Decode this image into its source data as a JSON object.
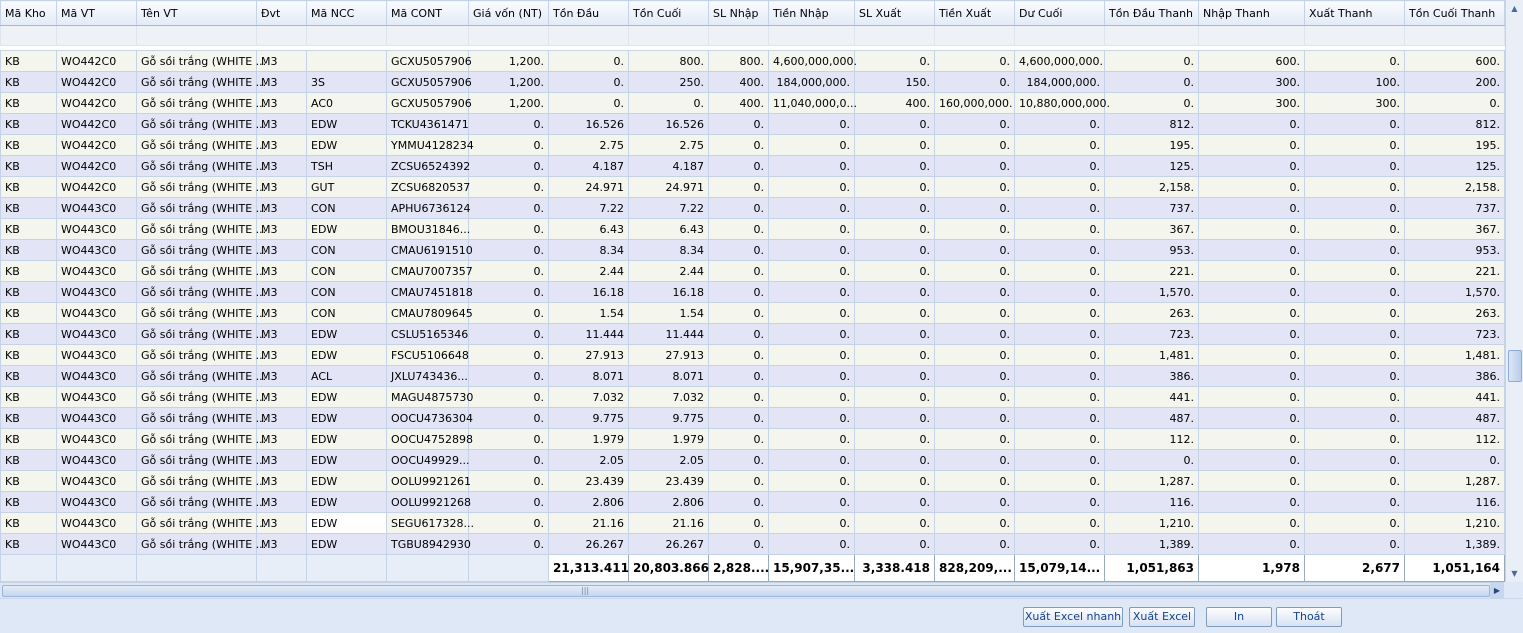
{
  "columns": [
    "Mã Kho",
    "Mã VT",
    "Tên VT",
    "Đvt",
    "Mã NCC",
    "Mã CONT",
    "Giá vốn (NT)",
    "Tồn Đầu",
    "Tồn Cuối",
    "SL Nhập",
    "Tiền Nhập",
    "SL Xuất",
    "Tiền Xuất",
    "Dư Cuối",
    "Tồn Đầu Thanh",
    "Nhập Thanh",
    "Xuất Thanh",
    "Tồn Cuối Thanh"
  ],
  "rows": [
    [
      "KB",
      "WO442C0",
      "Gỗ sồi trắng (WHITE ...",
      "M3",
      "",
      "GCXU5057906",
      "1,200.",
      "0.",
      "800.",
      "800.",
      "4,600,000,000.",
      "0.",
      "0.",
      "4,600,000,000.",
      "0.",
      "600.",
      "0.",
      "600."
    ],
    [
      "KB",
      "WO442C0",
      "Gỗ sồi trắng (WHITE ...",
      "M3",
      "3S",
      "GCXU5057906",
      "1,200.",
      "0.",
      "250.",
      "400.",
      "184,000,000.",
      "150.",
      "0.",
      "184,000,000.",
      "0.",
      "300.",
      "100.",
      "200."
    ],
    [
      "KB",
      "WO442C0",
      "Gỗ sồi trắng (WHITE ...",
      "M3",
      "AC0",
      "GCXU5057906",
      "1,200.",
      "0.",
      "0.",
      "400.",
      "11,040,000,0...",
      "400.",
      "160,000,000.",
      "10,880,000,000.",
      "0.",
      "300.",
      "300.",
      "0."
    ],
    [
      "KB",
      "WO442C0",
      "Gỗ sồi trắng (WHITE ...",
      "M3",
      "EDW",
      "TCKU4361471",
      "0.",
      "16.526",
      "16.526",
      "0.",
      "0.",
      "0.",
      "0.",
      "0.",
      "812.",
      "0.",
      "0.",
      "812."
    ],
    [
      "KB",
      "WO442C0",
      "Gỗ sồi trắng (WHITE ...",
      "M3",
      "EDW",
      "YMMU4128234",
      "0.",
      "2.75",
      "2.75",
      "0.",
      "0.",
      "0.",
      "0.",
      "0.",
      "195.",
      "0.",
      "0.",
      "195."
    ],
    [
      "KB",
      "WO442C0",
      "Gỗ sồi trắng (WHITE ...",
      "M3",
      "TSH",
      "ZCSU6524392",
      "0.",
      "4.187",
      "4.187",
      "0.",
      "0.",
      "0.",
      "0.",
      "0.",
      "125.",
      "0.",
      "0.",
      "125."
    ],
    [
      "KB",
      "WO442C0",
      "Gỗ sồi trắng (WHITE ...",
      "M3",
      "GUT",
      "ZCSU6820537",
      "0.",
      "24.971",
      "24.971",
      "0.",
      "0.",
      "0.",
      "0.",
      "0.",
      "2,158.",
      "0.",
      "0.",
      "2,158."
    ],
    [
      "KB",
      "WO443C0",
      "Gỗ sồi trắng (WHITE ...",
      "M3",
      "CON",
      "APHU6736124",
      "0.",
      "7.22",
      "7.22",
      "0.",
      "0.",
      "0.",
      "0.",
      "0.",
      "737.",
      "0.",
      "0.",
      "737."
    ],
    [
      "KB",
      "WO443C0",
      "Gỗ sồi trắng (WHITE ...",
      "M3",
      "EDW",
      "BMOU31846...",
      "0.",
      "6.43",
      "6.43",
      "0.",
      "0.",
      "0.",
      "0.",
      "0.",
      "367.",
      "0.",
      "0.",
      "367."
    ],
    [
      "KB",
      "WO443C0",
      "Gỗ sồi trắng (WHITE ...",
      "M3",
      "CON",
      "CMAU6191510",
      "0.",
      "8.34",
      "8.34",
      "0.",
      "0.",
      "0.",
      "0.",
      "0.",
      "953.",
      "0.",
      "0.",
      "953."
    ],
    [
      "KB",
      "WO443C0",
      "Gỗ sồi trắng (WHITE ...",
      "M3",
      "CON",
      "CMAU7007357",
      "0.",
      "2.44",
      "2.44",
      "0.",
      "0.",
      "0.",
      "0.",
      "0.",
      "221.",
      "0.",
      "0.",
      "221."
    ],
    [
      "KB",
      "WO443C0",
      "Gỗ sồi trắng (WHITE ...",
      "M3",
      "CON",
      "CMAU7451818",
      "0.",
      "16.18",
      "16.18",
      "0.",
      "0.",
      "0.",
      "0.",
      "0.",
      "1,570.",
      "0.",
      "0.",
      "1,570."
    ],
    [
      "KB",
      "WO443C0",
      "Gỗ sồi trắng (WHITE ...",
      "M3",
      "CON",
      "CMAU7809645",
      "0.",
      "1.54",
      "1.54",
      "0.",
      "0.",
      "0.",
      "0.",
      "0.",
      "263.",
      "0.",
      "0.",
      "263."
    ],
    [
      "KB",
      "WO443C0",
      "Gỗ sồi trắng (WHITE ...",
      "M3",
      "EDW",
      "CSLU5165346",
      "0.",
      "11.444",
      "11.444",
      "0.",
      "0.",
      "0.",
      "0.",
      "0.",
      "723.",
      "0.",
      "0.",
      "723."
    ],
    [
      "KB",
      "WO443C0",
      "Gỗ sồi trắng (WHITE ...",
      "M3",
      "EDW",
      "FSCU5106648",
      "0.",
      "27.913",
      "27.913",
      "0.",
      "0.",
      "0.",
      "0.",
      "0.",
      "1,481.",
      "0.",
      "0.",
      "1,481."
    ],
    [
      "KB",
      "WO443C0",
      "Gỗ sồi trắng (WHITE ...",
      "M3",
      "ACL",
      "JXLU743436...",
      "0.",
      "8.071",
      "8.071",
      "0.",
      "0.",
      "0.",
      "0.",
      "0.",
      "386.",
      "0.",
      "0.",
      "386."
    ],
    [
      "KB",
      "WO443C0",
      "Gỗ sồi trắng (WHITE ...",
      "M3",
      "EDW",
      "MAGU4875730",
      "0.",
      "7.032",
      "7.032",
      "0.",
      "0.",
      "0.",
      "0.",
      "0.",
      "441.",
      "0.",
      "0.",
      "441."
    ],
    [
      "KB",
      "WO443C0",
      "Gỗ sồi trắng (WHITE ...",
      "M3",
      "EDW",
      "OOCU4736304",
      "0.",
      "9.775",
      "9.775",
      "0.",
      "0.",
      "0.",
      "0.",
      "0.",
      "487.",
      "0.",
      "0.",
      "487."
    ],
    [
      "KB",
      "WO443C0",
      "Gỗ sồi trắng (WHITE ...",
      "M3",
      "EDW",
      "OOCU4752898",
      "0.",
      "1.979",
      "1.979",
      "0.",
      "0.",
      "0.",
      "0.",
      "0.",
      "112.",
      "0.",
      "0.",
      "112."
    ],
    [
      "KB",
      "WO443C0",
      "Gỗ sồi trắng (WHITE ...",
      "M3",
      "EDW",
      "OOCU49929...",
      "0.",
      "2.05",
      "2.05",
      "0.",
      "0.",
      "0.",
      "0.",
      "0.",
      "0.",
      "0.",
      "0.",
      "0."
    ],
    [
      "KB",
      "WO443C0",
      "Gỗ sồi trắng (WHITE ...",
      "M3",
      "EDW",
      "OOLU9921261",
      "0.",
      "23.439",
      "23.439",
      "0.",
      "0.",
      "0.",
      "0.",
      "0.",
      "1,287.",
      "0.",
      "0.",
      "1,287."
    ],
    [
      "KB",
      "WO443C0",
      "Gỗ sồi trắng (WHITE ...",
      "M3",
      "EDW",
      "OOLU9921268",
      "0.",
      "2.806",
      "2.806",
      "0.",
      "0.",
      "0.",
      "0.",
      "0.",
      "116.",
      "0.",
      "0.",
      "116."
    ],
    [
      "KB",
      "WO443C0",
      "Gỗ sồi trắng (WHITE ...",
      "M3",
      "EDW",
      "SEGU617328...",
      "0.",
      "21.16",
      "21.16",
      "0.",
      "0.",
      "0.",
      "0.",
      "0.",
      "1,210.",
      "0.",
      "0.",
      "1,210."
    ],
    [
      "KB",
      "WO443C0",
      "Gỗ sồi trắng (WHITE ...",
      "M3",
      "EDW",
      "TGBU8942930",
      "0.",
      "26.267",
      "26.267",
      "0.",
      "0.",
      "0.",
      "0.",
      "0.",
      "1,389.",
      "0.",
      "0.",
      "1,389."
    ]
  ],
  "totals": [
    "",
    "",
    "",
    "",
    "",
    "",
    "",
    "21,313.411",
    "20,803.866",
    "2,828....",
    "15,907,35...",
    "3,338.418",
    "828,209,...",
    "15,079,14...",
    "1,051,863",
    "1,978",
    "2,677",
    "1,051,164"
  ],
  "buttons": {
    "export_fast": "Xuất Excel nhanh",
    "export": "Xuất Excel",
    "print": "In",
    "exit": "Thoát"
  },
  "icons": {
    "scroll_up": "triangle-up",
    "scroll_down": "triangle-down",
    "scroll_right": "triangle-right"
  }
}
